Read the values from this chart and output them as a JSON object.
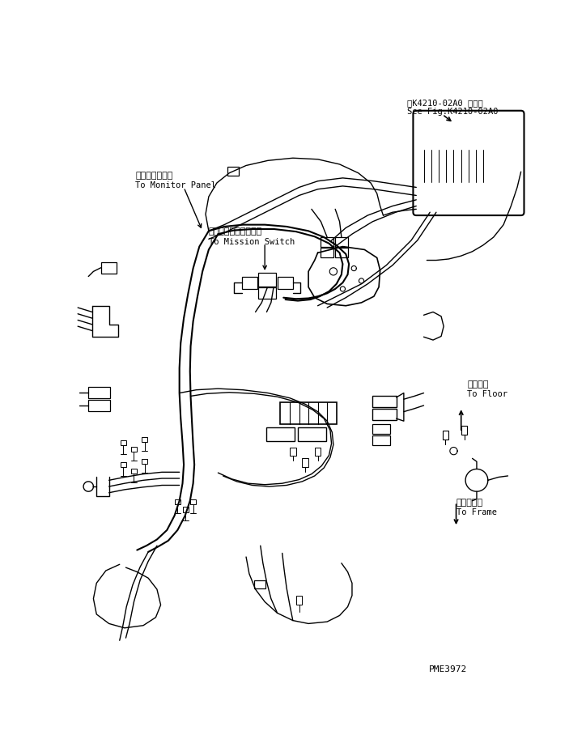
{
  "bg_color": "#ffffff",
  "line_color": "#000000",
  "fig_width": 7.24,
  "fig_height": 9.34,
  "dpi": 100,
  "top_right_text1": "第K4210-02A0 図参照",
  "top_right_text2": "See Fig.K4210-02A0",
  "bottom_right_text": "PME3972",
  "label_monitor_jp": "モニタパネルへ",
  "label_monitor_en": "To Monitor Panel",
  "label_mission_jp": "ミッションスイッチへ",
  "label_mission_en": "To Mission Switch",
  "label_floor_jp": "フロアへ",
  "label_floor_en": "To Floor",
  "label_frame_jp": "フレームへ",
  "label_frame_en": "To Frame"
}
